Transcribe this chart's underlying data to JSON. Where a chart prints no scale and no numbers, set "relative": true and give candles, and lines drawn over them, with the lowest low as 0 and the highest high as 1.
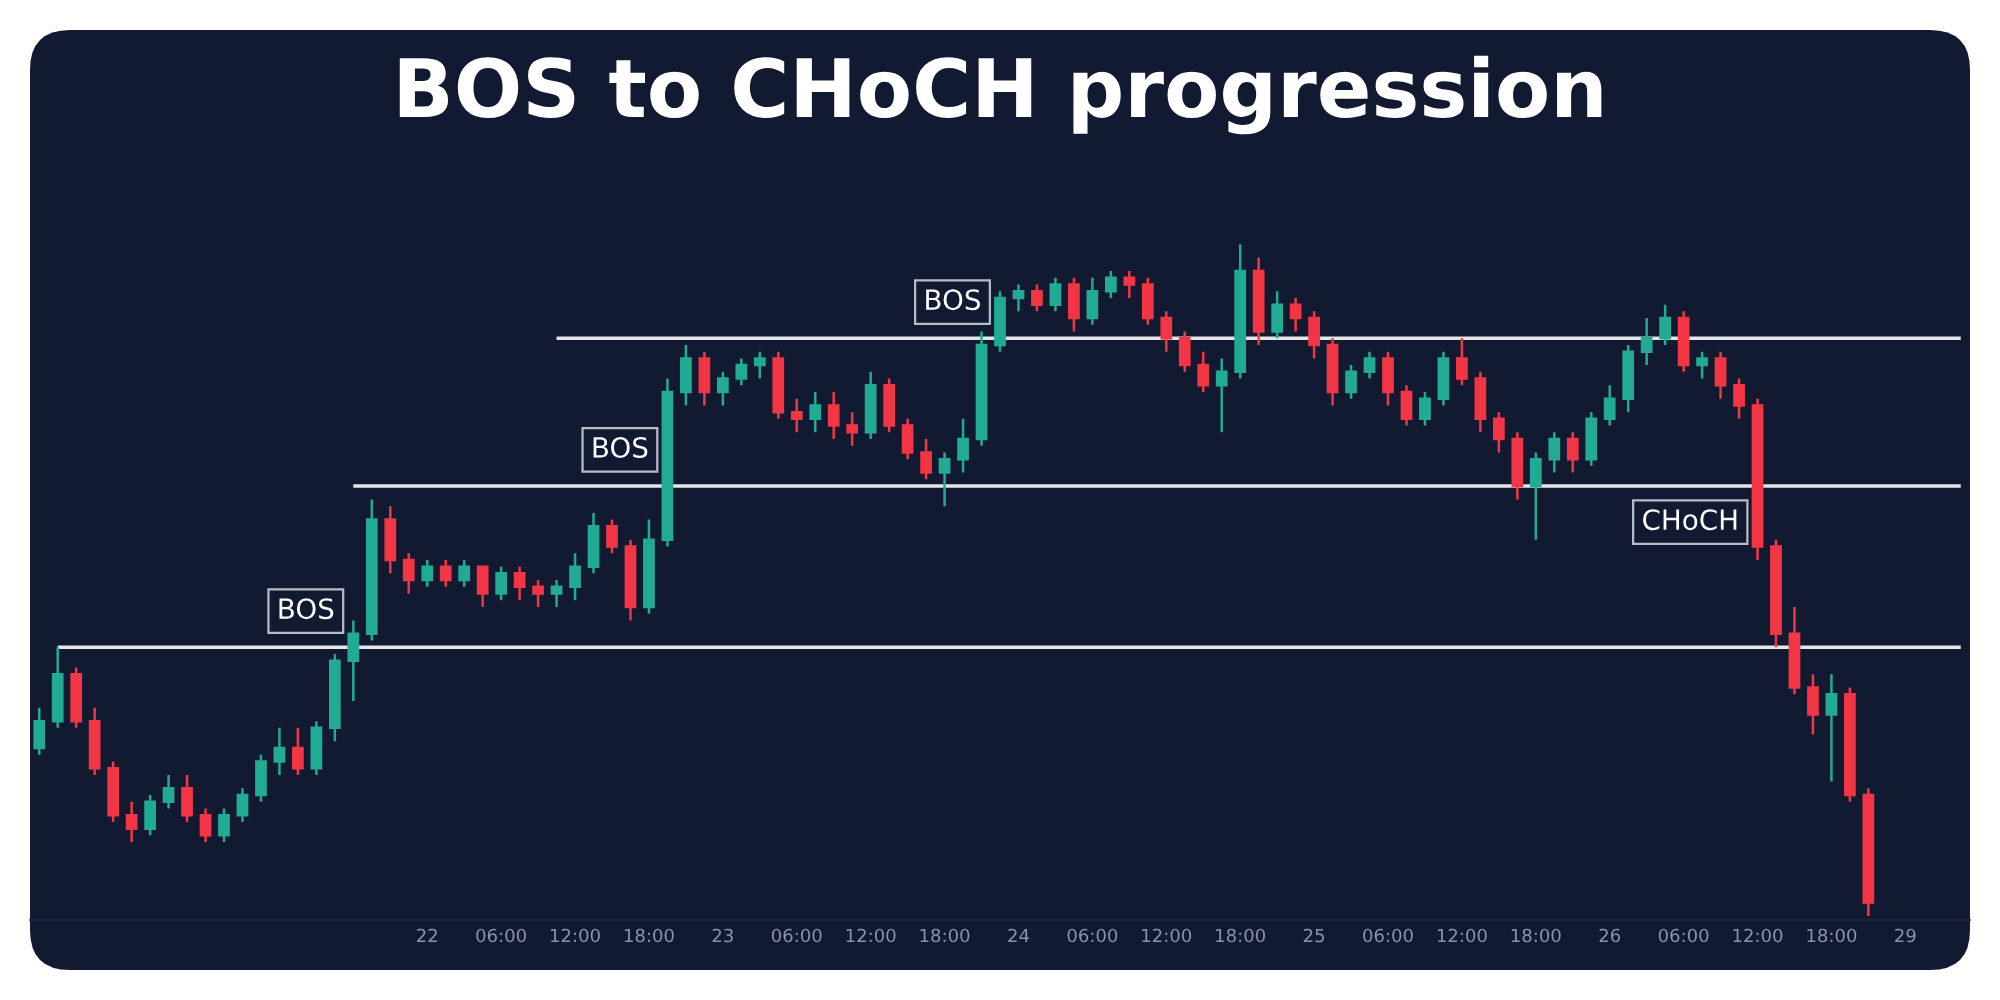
{
  "chart_data": {
    "type": "candlestick",
    "title": "BOS to CHoCH progression",
    "relative": true,
    "tick_labels": "x",
    "categories": [
      null,
      null,
      null,
      null,
      null,
      null,
      null,
      null,
      null,
      null,
      null,
      null,
      null,
      null,
      null,
      null,
      null,
      null,
      null,
      null,
      null,
      "22",
      null,
      null,
      null,
      "06:00",
      null,
      null,
      null,
      "12:00",
      null,
      null,
      null,
      "18:00",
      null,
      null,
      null,
      "23",
      null,
      null,
      null,
      "06:00",
      null,
      null,
      null,
      "12:00",
      null,
      null,
      null,
      "18:00",
      null,
      null,
      null,
      "24",
      null,
      null,
      null,
      "06:00",
      null,
      null,
      null,
      "12:00",
      null,
      null,
      null,
      "18:00",
      null,
      null,
      null,
      "25",
      null,
      null,
      null,
      "06:00",
      null,
      null,
      null,
      "12:00",
      null,
      null,
      null,
      "18:00",
      null,
      null,
      null,
      "26",
      null,
      null,
      null,
      "06:00",
      null,
      null,
      null,
      "12:00",
      null,
      null,
      null,
      "18:00",
      null,
      null,
      null,
      "29",
      null,
      null,
      null
    ],
    "ohlc": [
      [
        0.25,
        0.31,
        0.24,
        0.29
      ],
      [
        0.29,
        0.4,
        0.28,
        0.36
      ],
      [
        0.36,
        0.37,
        0.28,
        0.29
      ],
      [
        0.29,
        0.31,
        0.21,
        0.22
      ],
      [
        0.22,
        0.23,
        0.14,
        0.15
      ],
      [
        0.15,
        0.17,
        0.11,
        0.13
      ],
      [
        0.13,
        0.18,
        0.12,
        0.17
      ],
      [
        0.17,
        0.21,
        0.16,
        0.19
      ],
      [
        0.19,
        0.21,
        0.14,
        0.15
      ],
      [
        0.15,
        0.16,
        0.11,
        0.12
      ],
      [
        0.12,
        0.16,
        0.11,
        0.15
      ],
      [
        0.15,
        0.19,
        0.14,
        0.18
      ],
      [
        0.18,
        0.24,
        0.17,
        0.23
      ],
      [
        0.23,
        0.28,
        0.21,
        0.25
      ],
      [
        0.25,
        0.28,
        0.21,
        0.22
      ],
      [
        0.22,
        0.29,
        0.21,
        0.28
      ],
      [
        0.28,
        0.39,
        0.26,
        0.38
      ],
      [
        0.38,
        0.44,
        0.32,
        0.42
      ],
      [
        0.42,
        0.62,
        0.41,
        0.59
      ],
      [
        0.59,
        0.61,
        0.51,
        0.53
      ],
      [
        0.53,
        0.54,
        0.48,
        0.5
      ],
      [
        0.5,
        0.53,
        0.49,
        0.52
      ],
      [
        0.52,
        0.53,
        0.49,
        0.5
      ],
      [
        0.5,
        0.53,
        0.49,
        0.52
      ],
      [
        0.52,
        0.52,
        0.46,
        0.48
      ],
      [
        0.48,
        0.52,
        0.47,
        0.51
      ],
      [
        0.51,
        0.52,
        0.47,
        0.49
      ],
      [
        0.49,
        0.5,
        0.46,
        0.48
      ],
      [
        0.48,
        0.5,
        0.46,
        0.49
      ],
      [
        0.49,
        0.54,
        0.47,
        0.52
      ],
      [
        0.52,
        0.6,
        0.51,
        0.58
      ],
      [
        0.58,
        0.59,
        0.54,
        0.55
      ],
      [
        0.55,
        0.56,
        0.44,
        0.46
      ],
      [
        0.46,
        0.59,
        0.45,
        0.56
      ],
      [
        0.56,
        0.8,
        0.55,
        0.78
      ],
      [
        0.78,
        0.85,
        0.76,
        0.83
      ],
      [
        0.83,
        0.84,
        0.76,
        0.78
      ],
      [
        0.78,
        0.81,
        0.76,
        0.8
      ],
      [
        0.8,
        0.83,
        0.79,
        0.82
      ],
      [
        0.82,
        0.84,
        0.8,
        0.83
      ],
      [
        0.83,
        0.84,
        0.74,
        0.75
      ],
      [
        0.75,
        0.77,
        0.72,
        0.74
      ],
      [
        0.74,
        0.78,
        0.72,
        0.76
      ],
      [
        0.76,
        0.78,
        0.71,
        0.73
      ],
      [
        0.73,
        0.75,
        0.7,
        0.72
      ],
      [
        0.72,
        0.81,
        0.71,
        0.79
      ],
      [
        0.79,
        0.8,
        0.72,
        0.73
      ],
      [
        0.73,
        0.74,
        0.68,
        0.69
      ],
      [
        0.69,
        0.71,
        0.65,
        0.66
      ],
      [
        0.66,
        0.69,
        0.61,
        0.68
      ],
      [
        0.68,
        0.74,
        0.66,
        0.71
      ],
      [
        0.71,
        0.87,
        0.7,
        0.85
      ],
      [
        0.85,
        0.93,
        0.84,
        0.92
      ],
      [
        0.92,
        0.94,
        0.9,
        0.93
      ],
      [
        0.93,
        0.94,
        0.9,
        0.91
      ],
      [
        0.91,
        0.95,
        0.9,
        0.94
      ],
      [
        0.94,
        0.95,
        0.87,
        0.89
      ],
      [
        0.89,
        0.95,
        0.88,
        0.93
      ],
      [
        0.93,
        0.96,
        0.92,
        0.95
      ],
      [
        0.95,
        0.96,
        0.92,
        0.94
      ],
      [
        0.94,
        0.95,
        0.88,
        0.89
      ],
      [
        0.89,
        0.9,
        0.84,
        0.86
      ],
      [
        0.86,
        0.87,
        0.81,
        0.82
      ],
      [
        0.82,
        0.84,
        0.78,
        0.79
      ],
      [
        0.79,
        0.83,
        0.72,
        0.81
      ],
      [
        0.81,
        1.0,
        0.8,
        0.96
      ],
      [
        0.96,
        0.98,
        0.85,
        0.87
      ],
      [
        0.87,
        0.93,
        0.86,
        0.91
      ],
      [
        0.91,
        0.92,
        0.87,
        0.89
      ],
      [
        0.89,
        0.9,
        0.83,
        0.85
      ],
      [
        0.85,
        0.86,
        0.76,
        0.78
      ],
      [
        0.78,
        0.82,
        0.77,
        0.81
      ],
      [
        0.81,
        0.84,
        0.8,
        0.83
      ],
      [
        0.83,
        0.84,
        0.76,
        0.78
      ],
      [
        0.78,
        0.79,
        0.73,
        0.74
      ],
      [
        0.74,
        0.78,
        0.73,
        0.77
      ],
      [
        0.77,
        0.84,
        0.76,
        0.83
      ],
      [
        0.83,
        0.86,
        0.79,
        0.8
      ],
      [
        0.8,
        0.81,
        0.72,
        0.74
      ],
      [
        0.74,
        0.75,
        0.69,
        0.71
      ],
      [
        0.71,
        0.72,
        0.62,
        0.64
      ],
      [
        0.64,
        0.69,
        0.56,
        0.68
      ],
      [
        0.68,
        0.72,
        0.66,
        0.71
      ],
      [
        0.71,
        0.72,
        0.66,
        0.68
      ],
      [
        0.68,
        0.75,
        0.67,
        0.74
      ],
      [
        0.74,
        0.79,
        0.73,
        0.77
      ],
      [
        0.77,
        0.85,
        0.75,
        0.84
      ],
      [
        0.84,
        0.89,
        0.82,
        0.86
      ],
      [
        0.86,
        0.91,
        0.85,
        0.89
      ],
      [
        0.89,
        0.9,
        0.81,
        0.82
      ],
      [
        0.82,
        0.84,
        0.8,
        0.83
      ],
      [
        0.83,
        0.84,
        0.77,
        0.79
      ],
      [
        0.79,
        0.8,
        0.74,
        0.76
      ],
      [
        0.76,
        0.77,
        0.53,
        0.55
      ],
      [
        0.55,
        0.56,
        0.4,
        0.42
      ],
      [
        0.42,
        0.46,
        0.33,
        0.34
      ],
      [
        0.34,
        0.36,
        0.27,
        0.3
      ],
      [
        0.3,
        0.36,
        0.2,
        0.33
      ],
      [
        0.33,
        0.34,
        0.17,
        0.18
      ],
      [
        0.18,
        0.19,
        0.0,
        0.02
      ],
      null,
      null,
      null,
      null,
      null
    ],
    "colors": [
      "#22ab94",
      "#22ab94",
      "#f23645",
      "#f23645",
      "#f23645",
      "#f23645",
      "#22ab94",
      "#22ab94",
      "#f23645",
      "#f23645",
      "#22ab94",
      "#22ab94",
      "#22ab94",
      "#22ab94",
      "#f23645",
      "#22ab94",
      "#22ab94",
      "#22ab94",
      "#22ab94",
      "#f23645",
      "#f23645",
      "#22ab94",
      "#f23645",
      "#22ab94",
      "#f23645",
      "#22ab94",
      "#f23645",
      "#f23645",
      "#22ab94",
      "#22ab94",
      "#22ab94",
      "#f23645",
      "#f23645",
      "#22ab94",
      "#22ab94",
      "#22ab94",
      "#f23645",
      "#22ab94",
      "#22ab94",
      "#22ab94",
      "#f23645",
      "#f23645",
      "#22ab94",
      "#f23645",
      "#f23645",
      "#22ab94",
      "#f23645",
      "#f23645",
      "#f23645",
      "#22ab94",
      "#22ab94",
      "#22ab94",
      "#22ab94",
      "#22ab94",
      "#f23645",
      "#22ab94",
      "#f23645",
      "#22ab94",
      "#22ab94",
      "#f23645",
      "#f23645",
      "#f23645",
      "#f23645",
      "#f23645",
      "#22ab94",
      "#22ab94",
      "#f23645",
      "#22ab94",
      "#f23645",
      "#f23645",
      "#f23645",
      "#22ab94",
      "#22ab94",
      "#f23645",
      "#f23645",
      "#22ab94",
      "#22ab94",
      "#f23645",
      "#f23645",
      "#f23645",
      "#f23645",
      "#22ab94",
      "#22ab94",
      "#f23645",
      "#22ab94",
      "#22ab94",
      "#22ab94",
      "#22ab94",
      "#22ab94",
      "#f23645",
      "#22ab94",
      "#f23645",
      "#f23645",
      "#f23645",
      "#f23645",
      "#f23645",
      "#f23645",
      "#22ab94",
      "#f23645",
      "#f23645",
      null,
      null,
      null,
      null,
      null
    ],
    "series": [
      {
        "type": "line",
        "color": "#e6e6e6",
        "values": [
          null,
          0.4,
          0.4,
          0.4,
          0.4,
          0.4,
          0.4,
          0.4,
          0.4,
          0.4,
          0.4,
          0.4,
          0.4,
          0.4,
          0.4,
          0.4,
          0.4,
          0.4,
          0.4,
          0.4,
          0.4,
          0.4,
          0.4,
          0.4,
          0.4,
          0.4,
          0.4,
          0.4,
          0.4,
          0.4,
          0.4,
          0.4,
          0.4,
          0.4,
          0.4,
          0.4,
          0.4,
          0.4,
          0.4,
          0.4,
          0.4,
          0.4,
          0.4,
          0.4,
          0.4,
          0.4,
          0.4,
          0.4,
          0.4,
          0.4,
          0.4,
          0.4,
          0.4,
          0.4,
          0.4,
          0.4,
          0.4,
          0.4,
          0.4,
          0.4,
          0.4,
          0.4,
          0.4,
          0.4,
          0.4,
          0.4,
          0.4,
          0.4,
          0.4,
          0.4,
          0.4,
          0.4,
          0.4,
          0.4,
          0.4,
          0.4,
          0.4,
          0.4,
          0.4,
          0.4,
          0.4,
          0.4,
          0.4,
          0.4,
          0.4,
          0.4,
          0.4,
          0.4,
          0.4,
          0.4,
          0.4,
          0.4,
          0.4,
          0.4,
          0.4,
          0.4,
          0.4,
          0.4,
          0.4,
          0.4,
          0.4,
          0.4,
          0.4,
          0.4,
          0.4
        ]
      },
      {
        "type": "line",
        "color": "#e6e6e6",
        "values": [
          null,
          null,
          null,
          null,
          null,
          null,
          null,
          null,
          null,
          null,
          null,
          null,
          null,
          null,
          null,
          null,
          null,
          0.64,
          0.64,
          0.64,
          0.64,
          0.64,
          0.64,
          0.64,
          0.64,
          0.64,
          0.64,
          0.64,
          0.64,
          0.64,
          0.64,
          0.64,
          0.64,
          0.64,
          0.64,
          0.64,
          0.64,
          0.64,
          0.64,
          0.64,
          0.64,
          0.64,
          0.64,
          0.64,
          0.64,
          0.64,
          0.64,
          0.64,
          0.64,
          0.64,
          0.64,
          0.64,
          0.64,
          0.64,
          0.64,
          0.64,
          0.64,
          0.64,
          0.64,
          0.64,
          0.64,
          0.64,
          0.64,
          0.64,
          0.64,
          0.64,
          0.64,
          0.64,
          0.64,
          0.64,
          0.64,
          0.64,
          0.64,
          0.64,
          0.64,
          0.64,
          0.64,
          0.64,
          0.64,
          0.64,
          0.64,
          0.64,
          0.64,
          0.64,
          0.64,
          0.64,
          0.64,
          0.64,
          0.64,
          0.64,
          0.64,
          0.64,
          0.64,
          0.64,
          0.64,
          0.64,
          0.64,
          0.64,
          0.64,
          0.64,
          0.64,
          0.64,
          0.64,
          0.64,
          0.64
        ]
      },
      {
        "type": "line",
        "color": "#e6e6e6",
        "values": [
          null,
          null,
          null,
          null,
          null,
          null,
          null,
          null,
          null,
          null,
          null,
          null,
          null,
          null,
          null,
          null,
          null,
          null,
          null,
          null,
          null,
          null,
          null,
          null,
          null,
          null,
          null,
          null,
          0.86,
          0.86,
          0.86,
          0.86,
          0.86,
          0.86,
          0.86,
          0.86,
          0.86,
          0.86,
          0.86,
          0.86,
          0.86,
          0.86,
          0.86,
          0.86,
          0.86,
          0.86,
          0.86,
          0.86,
          0.86,
          0.86,
          0.86,
          0.86,
          0.86,
          0.86,
          0.86,
          0.86,
          0.86,
          0.86,
          0.86,
          0.86,
          0.86,
          0.86,
          0.86,
          0.86,
          0.86,
          0.86,
          0.86,
          0.86,
          0.86,
          0.86,
          0.86,
          0.86,
          0.86,
          0.86,
          0.86,
          0.86,
          0.86,
          0.86,
          0.86,
          0.86,
          0.86,
          0.86,
          0.86,
          0.86,
          0.86,
          0.86,
          0.86,
          0.86,
          0.86,
          0.86,
          0.86,
          0.86,
          0.86,
          0.86,
          0.86,
          0.86,
          0.86,
          0.86,
          0.86,
          0.86,
          0.86,
          0.86,
          0.86,
          0.86,
          0.86
        ]
      }
    ],
    "annotations": [
      {
        "text": "BOS",
        "y": 0.4
      },
      {
        "text": "BOS",
        "y": 0.64
      },
      {
        "text": "BOS",
        "y": 0.86
      },
      {
        "text": "CHoCH",
        "y": 0.64
      }
    ]
  }
}
